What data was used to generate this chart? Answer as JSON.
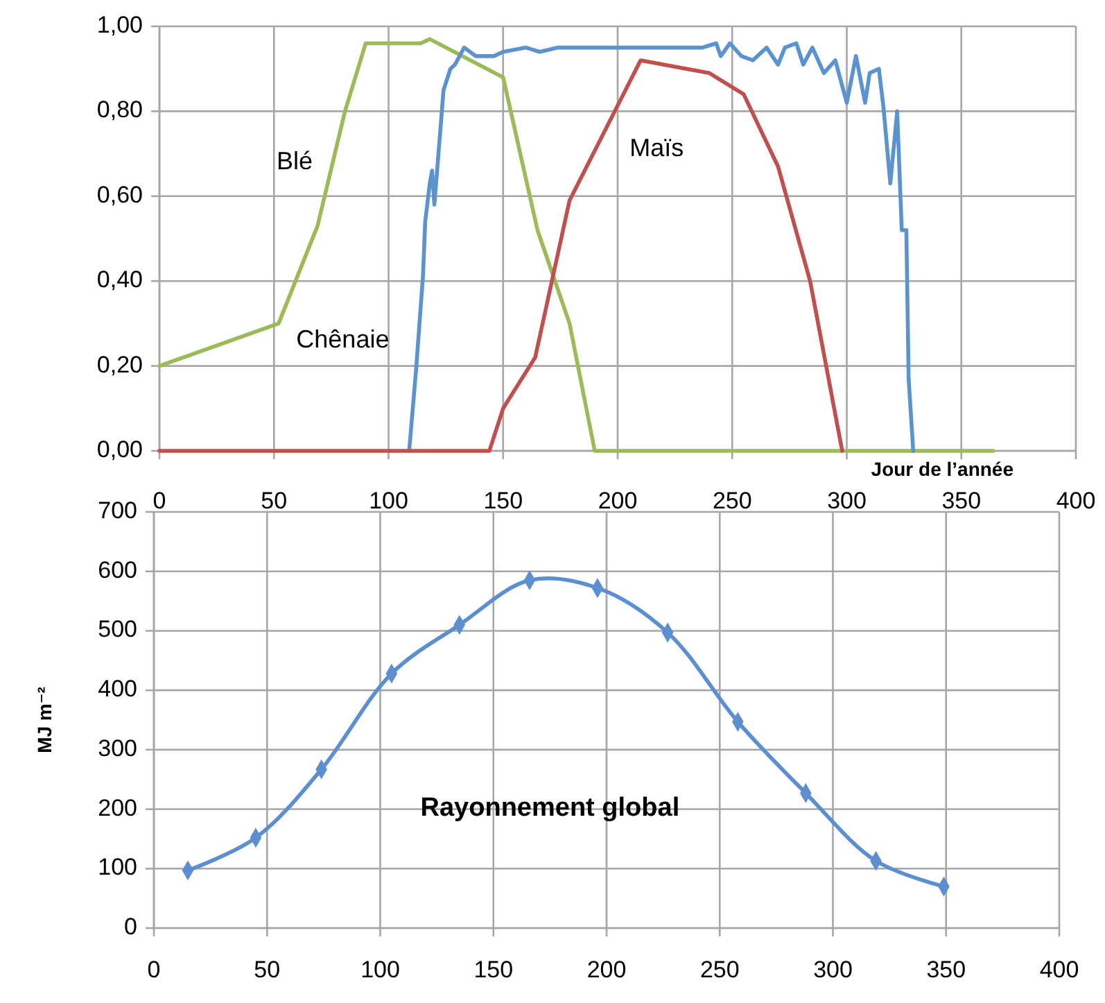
{
  "chart_data": [
    {
      "type": "line",
      "xlabel": "Jour de l’année",
      "xlim": [
        0,
        400
      ],
      "xticks": [
        0,
        50,
        100,
        150,
        200,
        250,
        300,
        350,
        400
      ],
      "ylim": [
        0,
        1
      ],
      "yticks": [
        {
          "value": 0,
          "label": "0,00"
        },
        {
          "value": 0.2,
          "label": "0,20"
        },
        {
          "value": 0.4,
          "label": "0,40"
        },
        {
          "value": 0.6,
          "label": "0,60"
        },
        {
          "value": 0.8,
          "label": "0,80"
        },
        {
          "value": 1,
          "label": "1,00"
        }
      ],
      "grid": true,
      "marker": "none",
      "line_style": "solid",
      "series": [
        {
          "color": "#9bbb59",
          "x": [
            0,
            52,
            69,
            81,
            90,
            114,
            118,
            150,
            165,
            179,
            190,
            364
          ],
          "values": [
            0.2,
            0.3,
            0.53,
            0.8,
            0.96,
            0.96,
            0.97,
            0.88,
            0.52,
            0.3,
            0,
            0
          ]
        },
        {
          "color": "#5b92d0",
          "x": [
            109,
            112,
            115,
            116,
            118,
            119,
            120,
            124,
            127,
            129,
            133,
            138,
            142,
            146,
            150,
            160,
            166,
            174,
            182,
            194,
            210,
            227,
            237,
            243,
            245,
            249,
            254,
            259,
            265,
            270,
            273,
            278,
            281,
            285,
            290,
            295,
            300,
            304,
            308,
            310,
            314,
            316,
            319,
            322,
            324,
            326,
            327,
            329
          ],
          "values": [
            0,
            0.19,
            0.41,
            0.54,
            0.63,
            0.66,
            0.58,
            0.85,
            0.9,
            0.91,
            0.95,
            0.93,
            0.93,
            0.93,
            0.94,
            0.95,
            0.94,
            0.95,
            0.95,
            0.95,
            0.95,
            0.95,
            0.95,
            0.96,
            0.93,
            0.96,
            0.93,
            0.92,
            0.95,
            0.91,
            0.95,
            0.96,
            0.91,
            0.95,
            0.89,
            0.92,
            0.82,
            0.93,
            0.82,
            0.89,
            0.9,
            0.81,
            0.63,
            0.8,
            0.52,
            0.52,
            0.17,
            0
          ]
        },
        {
          "color": "#c0504d",
          "x": [
            0,
            144,
            150,
            164,
            179,
            210,
            240,
            255,
            270,
            284,
            298
          ],
          "values": [
            0,
            0,
            0.1,
            0.22,
            0.59,
            0.92,
            0.89,
            0.84,
            0.67,
            0.4,
            0
          ]
        }
      ],
      "annotations": [
        "Blé",
        "Chênaie",
        "Maïs"
      ]
    },
    {
      "type": "line",
      "ylabel": "MJ m⁻²",
      "xlim": [
        0,
        400
      ],
      "xticks": [
        0,
        50,
        100,
        150,
        200,
        250,
        300,
        350,
        400
      ],
      "ylim": [
        0,
        700
      ],
      "yticks": [
        0,
        100,
        200,
        300,
        400,
        500,
        600,
        700
      ],
      "grid": true,
      "marker": "diamond",
      "line_style": "solid",
      "series": [
        {
          "color": "#5b8fd0",
          "x": [
            15,
            45,
            74,
            105,
            135,
            166,
            196,
            227,
            258,
            288,
            319,
            349
          ],
          "values": [
            97,
            152,
            267,
            428,
            510,
            585,
            572,
            497,
            347,
            227,
            113,
            70
          ]
        }
      ],
      "annotations": [
        "Rayonnement global"
      ]
    }
  ]
}
